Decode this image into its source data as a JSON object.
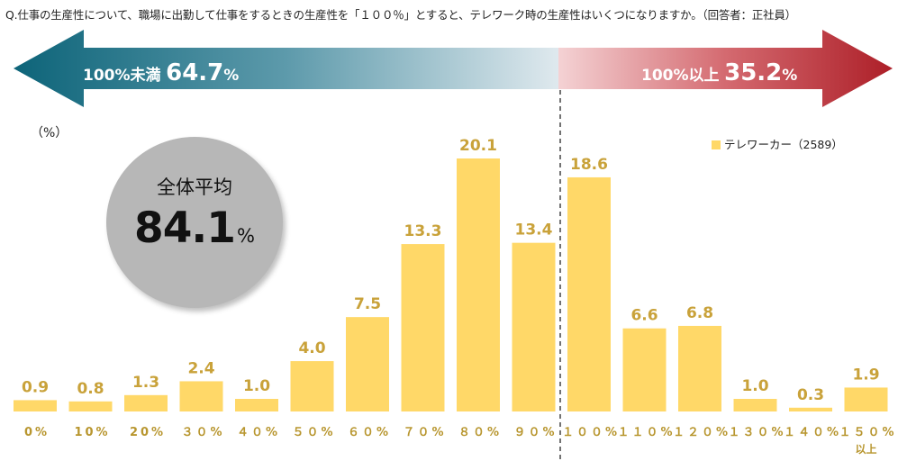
{
  "question": "Q.仕事の生産性について、職場に出勤して仕事をするときの生産性を「１００％」とすると、テレワーク時の生産性はいくつになりますか。（回答者：正社員）",
  "arrows": {
    "left": {
      "prefix": "100%未満",
      "value": "64.7",
      "unit": "%",
      "color": "#0f6a80"
    },
    "right": {
      "prefix": "100%以上",
      "value": "35.2",
      "unit": "%",
      "color": "#b3232b"
    }
  },
  "unit_label": "（%）",
  "average": {
    "title": "全体平均",
    "value": "84.1",
    "unit": "%"
  },
  "legend": {
    "label": "テレワーカー（2589）"
  },
  "colors": {
    "bar": "#ffd868",
    "value_label": "#c9a23a",
    "category_label": "#b8962f",
    "divider": "#444444"
  },
  "chart_data": {
    "type": "bar",
    "categories": [
      "0%",
      "10%",
      "20%",
      "30%",
      "40%",
      "50%",
      "60%",
      "70%",
      "80%",
      "90%",
      "100%",
      "110%",
      "120%",
      "130%",
      "140%",
      "150%"
    ],
    "category_display": [
      "0%",
      "10%",
      "20%",
      "３０%",
      "４０%",
      "５０%",
      "６０%",
      "７０%",
      "８０%",
      "９０%",
      "１００%",
      "１１０%",
      "１２０%",
      "１３０%",
      "１４０%",
      "１５０%"
    ],
    "category_sublabels": [
      "",
      "",
      "",
      "",
      "",
      "",
      "",
      "",
      "",
      "",
      "",
      "",
      "",
      "",
      "",
      "以上"
    ],
    "series": [
      {
        "name": "テレワーカー（2589）",
        "values": [
          0.9,
          0.8,
          1.3,
          2.4,
          1.0,
          4.0,
          7.5,
          13.3,
          20.1,
          13.4,
          18.6,
          6.6,
          6.8,
          1.0,
          0.3,
          1.9
        ]
      }
    ],
    "value_labels": [
      "0.9",
      "0.8",
      "1.3",
      "2.4",
      "1.0",
      "4.0",
      "7.5",
      "13.3",
      "20.1",
      "13.4",
      "18.6",
      "6.6",
      "6.8",
      "1.0",
      "0.3",
      "1.9"
    ],
    "ylim": [
      0,
      20.1
    ],
    "grid": false,
    "legend_position": "top-right"
  }
}
